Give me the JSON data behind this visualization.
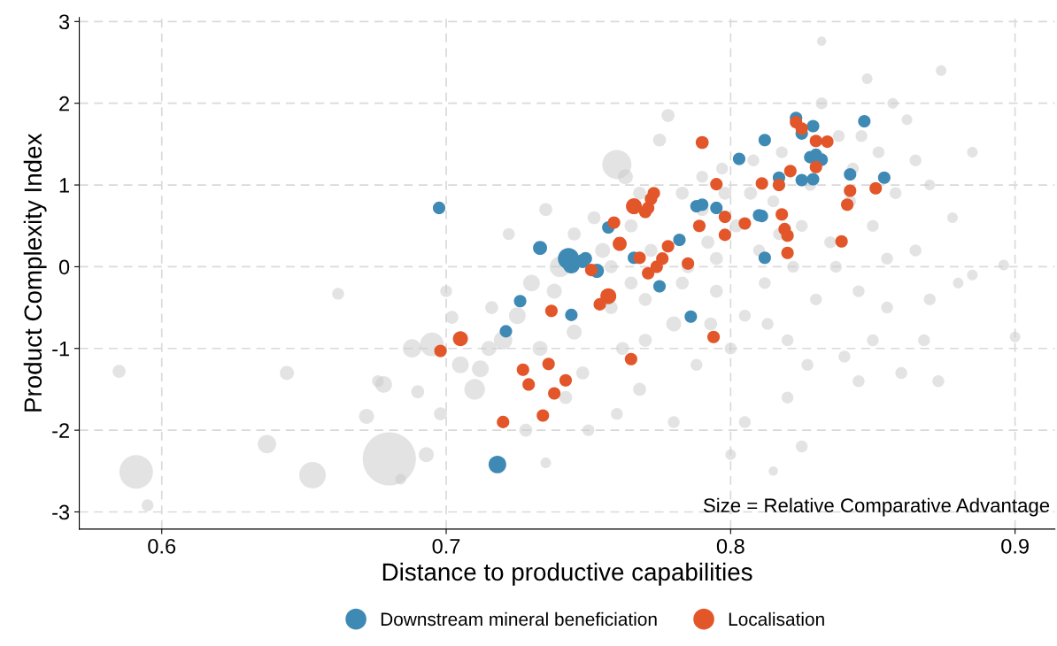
{
  "chart_data": {
    "type": "bubble",
    "xlabel": "Distance to productive capabilities",
    "ylabel": "Product Complexity Index",
    "xlim": [
      0.571,
      0.914
    ],
    "ylim": [
      -3.21,
      3.05
    ],
    "xticks": [
      0.6,
      0.7,
      0.8,
      0.9
    ],
    "yticks": [
      -3,
      -2,
      -1,
      0,
      1,
      2,
      3
    ],
    "grid": true,
    "legend": "bottom",
    "marker": "circle",
    "annotations": [
      "Size = Relative Comparative Advantage"
    ],
    "series": [
      {
        "color": "#cccccc",
        "x": [
          0.585,
          0.591,
          0.595,
          0.637,
          0.653,
          0.644,
          0.662,
          0.676,
          0.672,
          0.68,
          0.69,
          0.678,
          0.695,
          0.702,
          0.688,
          0.684,
          0.693,
          0.698,
          0.71,
          0.712,
          0.72,
          0.716,
          0.722,
          0.73,
          0.735,
          0.728,
          0.735,
          0.74,
          0.745,
          0.748,
          0.755,
          0.758,
          0.76,
          0.763,
          0.765,
          0.762,
          0.768,
          0.77,
          0.772,
          0.775,
          0.778,
          0.78,
          0.783,
          0.785,
          0.788,
          0.79,
          0.792,
          0.795,
          0.798,
          0.8,
          0.802,
          0.805,
          0.808,
          0.81,
          0.812,
          0.815,
          0.818,
          0.82,
          0.822,
          0.825,
          0.828,
          0.83,
          0.832,
          0.835,
          0.838,
          0.84,
          0.842,
          0.845,
          0.848,
          0.85,
          0.852,
          0.855,
          0.858,
          0.86,
          0.862,
          0.865,
          0.868,
          0.87,
          0.874,
          0.878,
          0.88,
          0.885,
          0.896,
          0.9,
          0.832,
          0.815,
          0.8,
          0.825,
          0.805,
          0.78,
          0.76,
          0.75,
          0.82,
          0.845,
          0.85,
          0.87,
          0.855,
          0.745,
          0.752,
          0.738,
          0.725,
          0.715,
          0.705,
          0.7,
          0.79,
          0.797,
          0.807,
          0.77,
          0.783,
          0.793,
          0.813,
          0.827,
          0.837,
          0.843,
          0.865,
          0.873,
          0.768,
          0.758,
          0.742,
          0.733,
          0.765,
          0.795,
          0.817,
          0.846,
          0.857,
          0.885
        ],
        "values": [
          -1.28,
          -2.51,
          -2.92,
          -2.17,
          -2.55,
          -1.3,
          -0.33,
          -1.4,
          -1.83,
          -2.35,
          -1.53,
          -1.44,
          -0.95,
          -0.62,
          -1.0,
          -2.6,
          -2.3,
          -1.8,
          -1.5,
          -1.25,
          -0.9,
          -0.5,
          0.4,
          -0.2,
          0.7,
          -2.0,
          -2.4,
          0.0,
          -0.8,
          -1.3,
          0.2,
          -0.5,
          1.25,
          1.1,
          0.5,
          -1.0,
          -1.5,
          -0.4,
          0.2,
          1.55,
          1.85,
          -0.7,
          0.9,
          0.0,
          -1.2,
          1.1,
          0.3,
          -0.3,
          0.9,
          -1.0,
          0.5,
          -0.6,
          1.3,
          0.2,
          -0.2,
          0.8,
          1.4,
          -0.9,
          0.0,
          0.5,
          1.0,
          -0.4,
          2.0,
          0.3,
          1.6,
          -1.1,
          0.8,
          -0.3,
          2.3,
          0.5,
          1.4,
          -0.5,
          0.9,
          -1.3,
          1.8,
          0.2,
          -0.9,
          1.0,
          2.4,
          0.6,
          -0.2,
          1.4,
          0.02,
          -0.86,
          2.76,
          -2.5,
          -2.3,
          -2.2,
          -1.9,
          -1.9,
          -1.8,
          -2.0,
          -1.6,
          -1.4,
          -0.9,
          -0.4,
          0.1,
          0.4,
          0.6,
          -0.3,
          -0.6,
          -1.0,
          -1.2,
          -0.3,
          0.7,
          1.2,
          0.9,
          -0.9,
          -0.2,
          -0.7,
          -0.7,
          -1.2,
          0.0,
          1.2,
          1.3,
          -1.4,
          0.9,
          0.0,
          -1.6,
          -1.0,
          -0.2,
          0.1,
          0.4,
          1.6,
          2.0,
          -0.1
        ],
        "sizes": [
          0.06,
          0.4,
          0.05,
          0.12,
          0.25,
          0.07,
          0.05,
          0.05,
          0.08,
          1.0,
          0.06,
          0.1,
          0.2,
          0.06,
          0.12,
          0.04,
          0.08,
          0.06,
          0.15,
          0.1,
          0.12,
          0.06,
          0.05,
          0.1,
          0.06,
          0.06,
          0.04,
          0.15,
          0.08,
          0.06,
          0.08,
          0.06,
          0.3,
          0.08,
          0.06,
          0.06,
          0.06,
          0.06,
          0.06,
          0.06,
          0.06,
          0.08,
          0.06,
          0.06,
          0.05,
          0.05,
          0.06,
          0.06,
          0.06,
          0.05,
          0.06,
          0.05,
          0.05,
          0.05,
          0.05,
          0.05,
          0.05,
          0.05,
          0.05,
          0.05,
          0.05,
          0.05,
          0.05,
          0.05,
          0.05,
          0.05,
          0.05,
          0.05,
          0.04,
          0.05,
          0.05,
          0.05,
          0.05,
          0.05,
          0.04,
          0.05,
          0.05,
          0.04,
          0.04,
          0.04,
          0.04,
          0.04,
          0.04,
          0.04,
          0.03,
          0.03,
          0.04,
          0.05,
          0.05,
          0.05,
          0.05,
          0.05,
          0.05,
          0.05,
          0.05,
          0.05,
          0.05,
          0.06,
          0.06,
          0.08,
          0.1,
          0.08,
          0.1,
          0.05,
          0.06,
          0.05,
          0.06,
          0.06,
          0.06,
          0.06,
          0.05,
          0.05,
          0.05,
          0.05,
          0.05,
          0.05,
          0.06,
          0.06,
          0.06,
          0.08,
          0.06,
          0.06,
          0.05,
          0.05,
          0.04,
          0.04
        ]
      },
      {
        "name": "Downstream mineral beneficiation",
        "color": "#3f8ab5",
        "x": [
          0.6975,
          0.733,
          0.726,
          0.721,
          0.718,
          0.743,
          0.744,
          0.748,
          0.749,
          0.753,
          0.744,
          0.757,
          0.766,
          0.775,
          0.782,
          0.786,
          0.788,
          0.79,
          0.795,
          0.803,
          0.812,
          0.817,
          0.81,
          0.811,
          0.812,
          0.823,
          0.825,
          0.829,
          0.828,
          0.83,
          0.832,
          0.825,
          0.829,
          0.842,
          0.847,
          0.854
        ],
        "values": [
          0.72,
          0.23,
          -0.42,
          -0.79,
          -2.42,
          0.1,
          0.02,
          0.07,
          0.1,
          -0.05,
          -0.59,
          0.48,
          0.11,
          -0.24,
          0.33,
          -0.61,
          0.74,
          0.76,
          0.72,
          1.32,
          1.55,
          1.09,
          0.63,
          0.62,
          0.11,
          1.82,
          1.63,
          1.72,
          1.34,
          1.37,
          1.31,
          1.06,
          1.07,
          1.13,
          1.78,
          1.09
        ],
        "sizes": [
          0.055,
          0.07,
          0.055,
          0.055,
          0.11,
          0.16,
          0.1,
          0.07,
          0.06,
          0.07,
          0.055,
          0.055,
          0.055,
          0.055,
          0.055,
          0.055,
          0.055,
          0.055,
          0.055,
          0.055,
          0.055,
          0.055,
          0.055,
          0.055,
          0.055,
          0.055,
          0.055,
          0.055,
          0.055,
          0.055,
          0.055,
          0.055,
          0.055,
          0.055,
          0.055,
          0.055
        ]
      },
      {
        "name": "Localisation",
        "color": "#e2562a",
        "x": [
          0.698,
          0.705,
          0.72,
          0.727,
          0.729,
          0.737,
          0.736,
          0.738,
          0.734,
          0.742,
          0.751,
          0.754,
          0.757,
          0.759,
          0.761,
          0.766,
          0.77,
          0.772,
          0.771,
          0.773,
          0.768,
          0.771,
          0.774,
          0.776,
          0.778,
          0.785,
          0.765,
          0.79,
          0.795,
          0.798,
          0.789,
          0.798,
          0.805,
          0.811,
          0.817,
          0.818,
          0.821,
          0.82,
          0.819,
          0.82,
          0.823,
          0.825,
          0.83,
          0.834,
          0.83,
          0.842,
          0.841,
          0.851,
          0.839,
          0.794
        ],
        "values": [
          -1.03,
          -0.88,
          -1.9,
          -1.26,
          -1.44,
          -0.54,
          -1.19,
          -1.55,
          -1.82,
          -1.39,
          -0.04,
          -0.46,
          -0.36,
          0.54,
          0.28,
          0.74,
          0.67,
          0.83,
          0.72,
          0.9,
          0.11,
          -0.08,
          0.0,
          0.1,
          0.25,
          0.04,
          -1.13,
          1.52,
          1.01,
          0.61,
          0.5,
          0.39,
          0.53,
          1.02,
          1.0,
          0.64,
          1.17,
          0.38,
          0.46,
          0.17,
          1.77,
          1.69,
          1.54,
          1.53,
          1.22,
          0.93,
          0.76,
          0.96,
          0.31,
          -0.86
        ],
        "sizes": [
          0.055,
          0.08,
          0.055,
          0.055,
          0.055,
          0.055,
          0.055,
          0.055,
          0.055,
          0.055,
          0.055,
          0.055,
          0.09,
          0.055,
          0.07,
          0.09,
          0.055,
          0.055,
          0.055,
          0.055,
          0.055,
          0.055,
          0.055,
          0.055,
          0.055,
          0.055,
          0.055,
          0.06,
          0.055,
          0.055,
          0.055,
          0.055,
          0.055,
          0.055,
          0.055,
          0.055,
          0.055,
          0.055,
          0.055,
          0.055,
          0.055,
          0.055,
          0.055,
          0.055,
          0.055,
          0.055,
          0.055,
          0.055,
          0.055,
          0.055
        ]
      }
    ]
  }
}
